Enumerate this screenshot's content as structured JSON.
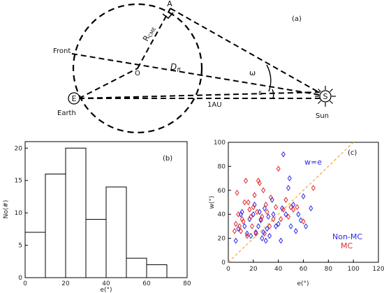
{
  "diagram": {
    "panel_label": "(a)",
    "labels": {
      "A": "A",
      "R_main": "R",
      "R_sub": "CME",
      "front": "Front",
      "O": "O",
      "D_main": "D",
      "D_sub": "fl",
      "omega": "ω",
      "eps": "ε",
      "E": "E",
      "earth": "Earth",
      "au": "1AU",
      "S": "S",
      "sun": "Sun"
    }
  },
  "chart_data": [
    {
      "type": "bar",
      "panel_label": "(b)",
      "xlabel": "e(°)",
      "ylabel": "No(#)",
      "bin_edges": [
        0,
        10,
        20,
        30,
        40,
        50,
        60,
        70
      ],
      "values": [
        7,
        16,
        20,
        9,
        14,
        3,
        2
      ],
      "xlim": [
        0,
        80
      ],
      "ylim": [
        0,
        21
      ],
      "xticks": [
        "0",
        "20",
        "40",
        "60",
        "80"
      ],
      "yticks": [
        "0",
        "5",
        "10",
        "15",
        "20"
      ]
    },
    {
      "type": "scatter",
      "panel_label": "(c)",
      "xlabel": "e(°)",
      "ylabel": "w(°)",
      "xlim": [
        0,
        120
      ],
      "ylim": [
        0,
        100
      ],
      "xticks": [
        "0",
        "20",
        "40",
        "60",
        "80",
        "100",
        "120"
      ],
      "yticks": [
        "0",
        "20",
        "40",
        "60",
        "80",
        "100"
      ],
      "reference_line": {
        "label": "w=e",
        "color": "#f0a030"
      },
      "series": [
        {
          "name": "Non-MC",
          "color": "#2a2ae6",
          "points": [
            [
              6,
              18
            ],
            [
              8,
              28
            ],
            [
              10,
              40
            ],
            [
              11,
              42
            ],
            [
              13,
              30
            ],
            [
              15,
              24
            ],
            [
              17,
              36
            ],
            [
              18,
              22
            ],
            [
              20,
              40
            ],
            [
              21,
              48
            ],
            [
              22,
              25
            ],
            [
              24,
              30
            ],
            [
              25,
              42
            ],
            [
              26,
              35
            ],
            [
              27,
              20
            ],
            [
              28,
              25
            ],
            [
              29,
              45
            ],
            [
              30,
              18
            ],
            [
              31,
              28
            ],
            [
              32,
              38
            ],
            [
              33,
              22
            ],
            [
              35,
              52
            ],
            [
              36,
              40
            ],
            [
              38,
              30
            ],
            [
              40,
              32
            ],
            [
              42,
              18
            ],
            [
              43,
              45
            ],
            [
              44,
              90
            ],
            [
              46,
              40
            ],
            [
              48,
              62
            ],
            [
              49,
              70
            ],
            [
              50,
              30
            ],
            [
              52,
              48
            ],
            [
              54,
              26
            ],
            [
              56,
              40
            ],
            [
              58,
              35
            ],
            [
              60,
              55
            ],
            [
              62,
              30
            ],
            [
              66,
              45
            ]
          ]
        },
        {
          "name": "MC",
          "color": "#e02a2a",
          "points": [
            [
              5,
              26
            ],
            [
              6,
              32
            ],
            [
              7,
              58
            ],
            [
              8,
              40
            ],
            [
              9,
              30
            ],
            [
              10,
              26
            ],
            [
              11,
              36
            ],
            [
              12,
              34
            ],
            [
              13,
              50
            ],
            [
              14,
              68
            ],
            [
              15,
              22
            ],
            [
              16,
              50
            ],
            [
              17,
              44
            ],
            [
              18,
              38
            ],
            [
              19,
              30
            ],
            [
              20,
              46
            ],
            [
              21,
              56
            ],
            [
              22,
              24
            ],
            [
              23,
              42
            ],
            [
              24,
              68
            ],
            [
              25,
              66
            ],
            [
              26,
              36
            ],
            [
              27,
              38
            ],
            [
              28,
              60
            ],
            [
              29,
              24
            ],
            [
              30,
              48
            ],
            [
              31,
              42
            ],
            [
              33,
              30
            ],
            [
              34,
              54
            ],
            [
              36,
              36
            ],
            [
              38,
              46
            ],
            [
              40,
              78
            ],
            [
              42,
              36
            ],
            [
              44,
              44
            ],
            [
              46,
              52
            ],
            [
              48,
              38
            ],
            [
              50,
              46
            ],
            [
              52,
              44
            ],
            [
              55,
              46
            ],
            [
              60,
              34
            ],
            [
              68,
              62
            ]
          ]
        }
      ]
    }
  ]
}
